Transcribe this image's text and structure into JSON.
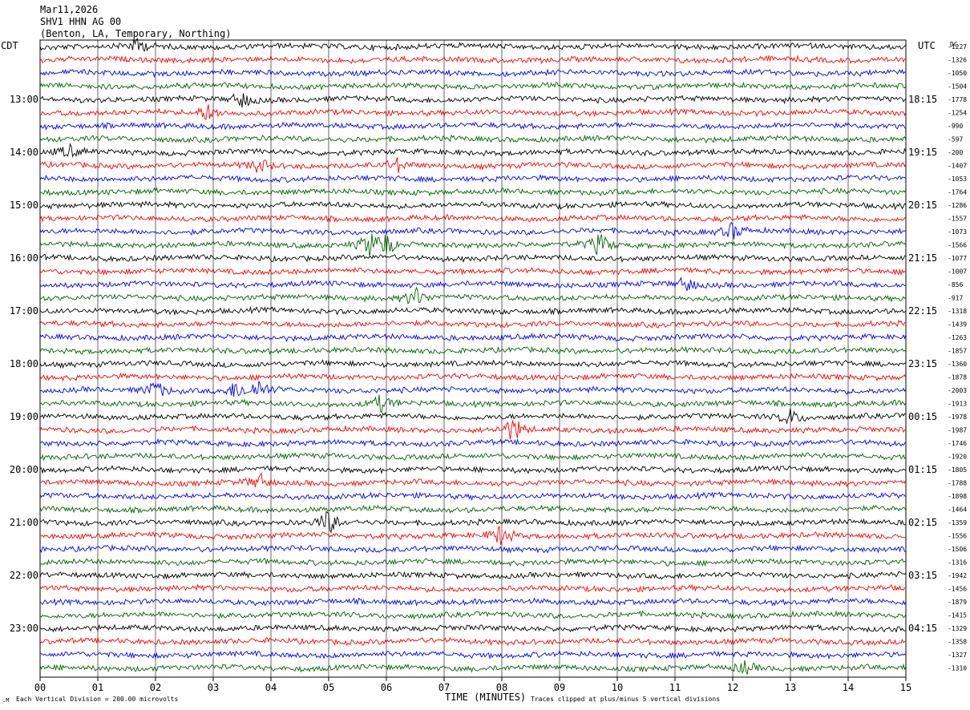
{
  "header": {
    "date": "Mar11,2026",
    "station": "SHV1 HHN AG 00",
    "location": "(Benton, LA, Temporary, Northing)"
  },
  "left_axis_label": "CDT",
  "right_axis_label": "UTC",
  "dc_label": "DC",
  "footer": {
    "scale_note": "Each Vertical Division =  200.00 microvolts",
    "xlabel": "TIME (MINUTES)",
    "clip_note": "Traces clipped at plus/minus 5 vertical divisions"
  },
  "chart_data": {
    "type": "line",
    "title": "SHV1 HHN AG 00",
    "xlabel": "TIME (MINUTES)",
    "x_ticks": [
      "00",
      "01",
      "02",
      "03",
      "04",
      "05",
      "06",
      "07",
      "08",
      "09",
      "10",
      "11",
      "12",
      "13",
      "14",
      "15"
    ],
    "xlim": [
      0,
      15
    ],
    "grid": "vertical lines at each minute",
    "trace_colors": [
      "#000000",
      "#ff0000",
      "#0000ff",
      "#006400"
    ],
    "left_hour_labels": [
      "13:00",
      "14:00",
      "15:00",
      "16:00",
      "17:00",
      "18:00",
      "19:00",
      "20:00",
      "21:00",
      "22:00",
      "23:00"
    ],
    "right_hour_labels": [
      "18:15",
      "19:15",
      "20:15",
      "21:15",
      "22:15",
      "23:15",
      "00:15",
      "01:15",
      "02:15",
      "03:15",
      "04:15"
    ],
    "dc_offsets": [
      "-1227",
      "-1326",
      "-1050",
      "-1504",
      "-1778",
      "-1254",
      "-990",
      "-597",
      "-200",
      "-1407",
      "-1053",
      "-1764",
      "-1286",
      "-1557",
      "-1073",
      "-1566",
      "-1077",
      "-1007",
      "-856",
      "-917",
      "-1318",
      "-1439",
      "-1263",
      "-1857",
      "-1360",
      "-1878",
      "-2003",
      "-1913",
      "-1978",
      "-1987",
      "-1746",
      "-1920",
      "-1805",
      "-1788",
      "-1898",
      "-1464",
      "-1359",
      "-1556",
      "-1506",
      "-1316",
      "-1942",
      "-1456",
      "-1879",
      "-1415",
      "-1329",
      "-1358",
      "-1327",
      "-1310"
    ],
    "events": [
      {
        "row": 0,
        "minute": 1.7,
        "amp": 10
      },
      {
        "row": 4,
        "minute": 3.5,
        "amp": 10
      },
      {
        "row": 5,
        "minute": 2.9,
        "amp": 10
      },
      {
        "row": 8,
        "minute": 0.5,
        "amp": 8
      },
      {
        "row": 9,
        "minute": 3.8,
        "amp": 9
      },
      {
        "row": 9,
        "minute": 6.2,
        "amp": 8
      },
      {
        "row": 14,
        "minute": 12.0,
        "amp": 10
      },
      {
        "row": 15,
        "minute": 5.7,
        "amp": 14
      },
      {
        "row": 15,
        "minute": 6.0,
        "amp": 14
      },
      {
        "row": 15,
        "minute": 9.7,
        "amp": 14
      },
      {
        "row": 18,
        "minute": 11.2,
        "amp": 9
      },
      {
        "row": 19,
        "minute": 6.5,
        "amp": 12
      },
      {
        "row": 26,
        "minute": 2.0,
        "amp": 12
      },
      {
        "row": 26,
        "minute": 3.4,
        "amp": 11
      },
      {
        "row": 26,
        "minute": 3.8,
        "amp": 12
      },
      {
        "row": 27,
        "minute": 5.9,
        "amp": 10
      },
      {
        "row": 28,
        "minute": 13.0,
        "amp": 10
      },
      {
        "row": 29,
        "minute": 8.2,
        "amp": 16
      },
      {
        "row": 33,
        "minute": 3.8,
        "amp": 10
      },
      {
        "row": 36,
        "minute": 5.0,
        "amp": 15
      },
      {
        "row": 37,
        "minute": 8.0,
        "amp": 14
      },
      {
        "row": 47,
        "minute": 12.2,
        "amp": 8
      }
    ]
  }
}
